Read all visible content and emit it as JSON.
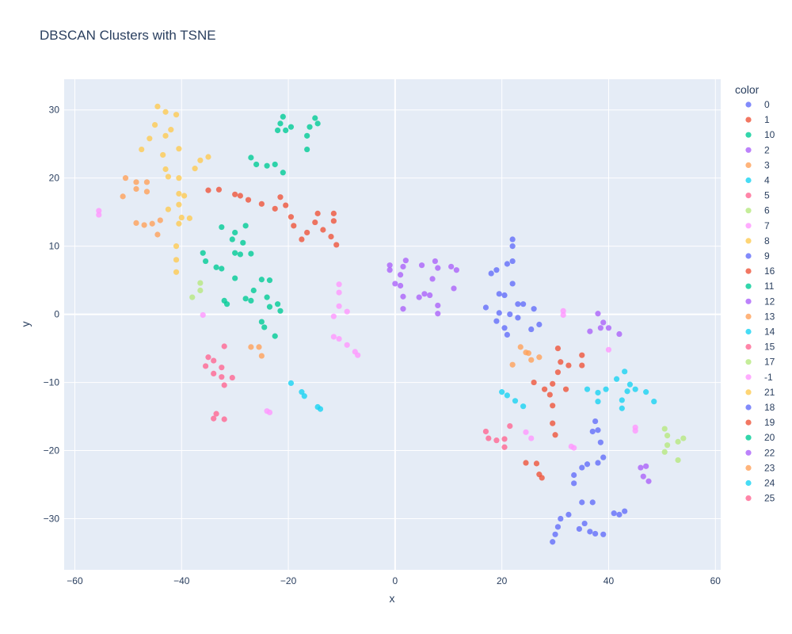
{
  "chart_data": {
    "type": "scatter",
    "title": "DBSCAN Clusters with TSNE",
    "xlabel": "x",
    "ylabel": "y",
    "xlim": [
      -62,
      61
    ],
    "ylim": [
      -37.5,
      34.5
    ],
    "xticks": [
      -60,
      -40,
      -20,
      0,
      20,
      40,
      60
    ],
    "yticks": [
      -30,
      -20,
      -10,
      0,
      10,
      20,
      30
    ],
    "grid": true,
    "legend_title": "color",
    "legend_position": "right",
    "series": [
      {
        "name": "0",
        "color": "#636efa",
        "points": [
          [
            22,
            11
          ],
          [
            22,
            10
          ],
          [
            22,
            7.8
          ],
          [
            18,
            6
          ],
          [
            19,
            6.5
          ],
          [
            19.5,
            3
          ],
          [
            21,
            7.4
          ],
          [
            20.5,
            2.8
          ],
          [
            22,
            4.5
          ],
          [
            23,
            1.5
          ],
          [
            24,
            1.5
          ],
          [
            26,
            0.8
          ],
          [
            19.5,
            0.2
          ],
          [
            21.5,
            0
          ],
          [
            23,
            -0.5
          ],
          [
            19,
            -1
          ],
          [
            20.5,
            -2
          ],
          [
            21,
            -3
          ],
          [
            25.5,
            -2.2
          ],
          [
            27,
            -1.5
          ],
          [
            17,
            1
          ]
        ]
      },
      {
        "name": "1",
        "color": "#EF553B",
        "points": [
          [
            -35,
            18.2
          ],
          [
            -33,
            18.3
          ],
          [
            -30,
            17.6
          ],
          [
            -29,
            17.4
          ],
          [
            -27.5,
            16.8
          ],
          [
            -25,
            16.2
          ],
          [
            -22.5,
            15.5
          ],
          [
            -21.5,
            17.2
          ],
          [
            -20.5,
            16
          ],
          [
            -19.5,
            14.3
          ],
          [
            -19,
            13
          ],
          [
            -17.5,
            11
          ],
          [
            -16.5,
            12
          ],
          [
            -15,
            13.5
          ],
          [
            -14.5,
            14.8
          ],
          [
            -13.5,
            12.4
          ],
          [
            -12,
            11.4
          ],
          [
            -11.5,
            13.7
          ],
          [
            -11.5,
            14.8
          ],
          [
            -11,
            10.2
          ]
        ]
      },
      {
        "name": "10",
        "color": "#00cc96",
        "points": [
          [
            -22,
            27
          ],
          [
            -21.5,
            28
          ],
          [
            -21,
            29
          ],
          [
            -20.5,
            27
          ],
          [
            -19.5,
            27.5
          ],
          [
            -16.5,
            26.2
          ],
          [
            -16.5,
            24.2
          ],
          [
            -16,
            27.5
          ],
          [
            -15,
            28.8
          ],
          [
            -14.5,
            28
          ]
        ]
      },
      {
        "name": "2",
        "color": "#ab63fa",
        "points": [
          [
            -1,
            6.5
          ],
          [
            -1,
            7.2
          ],
          [
            0,
            4.5
          ],
          [
            1,
            4.2
          ],
          [
            1.5,
            7
          ],
          [
            1,
            5.8
          ],
          [
            2,
            7.9
          ],
          [
            1.5,
            2.6
          ],
          [
            1.5,
            0.8
          ],
          [
            4.5,
            2.5
          ],
          [
            5,
            7.2
          ],
          [
            5.5,
            3
          ],
          [
            6.5,
            2.8
          ],
          [
            7,
            5.2
          ],
          [
            7.5,
            7.8
          ],
          [
            8,
            6.8
          ],
          [
            8,
            1.3
          ],
          [
            8,
            0.1
          ],
          [
            10.5,
            7
          ],
          [
            11,
            3.8
          ],
          [
            11.5,
            6.5
          ]
        ]
      },
      {
        "name": "3",
        "color": "#FFA15A",
        "points": [
          [
            -50.5,
            20
          ],
          [
            -51,
            17.3
          ],
          [
            -48.5,
            19.4
          ],
          [
            -48.5,
            18.4
          ],
          [
            -46.5,
            19.4
          ],
          [
            -46.5,
            18
          ],
          [
            -48.5,
            13.4
          ],
          [
            -47,
            13.1
          ],
          [
            -45.5,
            13.3
          ],
          [
            -44.5,
            11.7
          ],
          [
            -44,
            13.8
          ]
        ]
      },
      {
        "name": "4",
        "color": "#19d3f3",
        "points": [
          [
            41.5,
            -9.5
          ],
          [
            43,
            -8.4
          ],
          [
            44,
            -10.3
          ],
          [
            43.5,
            -11.3
          ],
          [
            45,
            -11
          ],
          [
            47,
            -11.4
          ],
          [
            48.5,
            -12.8
          ],
          [
            42.5,
            -12.6
          ],
          [
            42.5,
            -13.8
          ],
          [
            36,
            -11
          ],
          [
            38,
            -11.5
          ],
          [
            39.5,
            -11
          ],
          [
            38,
            -12.8
          ]
        ]
      },
      {
        "name": "5",
        "color": "#FF6692",
        "points": [
          [
            -35,
            -6.3
          ],
          [
            -35.5,
            -7.6
          ],
          [
            -34,
            -6.8
          ],
          [
            -34,
            -8.7
          ],
          [
            -32.5,
            -7.8
          ],
          [
            -32.5,
            -9.2
          ],
          [
            -32,
            -10.4
          ],
          [
            -30.5,
            -9.3
          ],
          [
            -32,
            -4.7
          ]
        ]
      },
      {
        "name": "6",
        "color": "#B6E880",
        "points": [
          [
            50.5,
            -16.8
          ],
          [
            51,
            -17.8
          ],
          [
            51,
            -19.2
          ],
          [
            50.5,
            -20.2
          ],
          [
            53,
            -18.7
          ],
          [
            54,
            -18.2
          ],
          [
            53,
            -21.4
          ]
        ]
      },
      {
        "name": "7",
        "color": "#FF97FF",
        "points": [
          [
            -55.5,
            14.6
          ],
          [
            -55.5,
            15.2
          ]
        ]
      },
      {
        "name": "8",
        "color": "#FECB52",
        "points": [
          [
            -44.5,
            30.5
          ],
          [
            -43,
            29.7
          ],
          [
            -41,
            29.3
          ],
          [
            -45,
            27.8
          ],
          [
            -42,
            27.1
          ],
          [
            -46,
            25.8
          ],
          [
            -43,
            26.2
          ],
          [
            -47.5,
            24.2
          ],
          [
            -40.5,
            24.3
          ],
          [
            -43.5,
            23.4
          ],
          [
            -37.5,
            21.4
          ],
          [
            -36.5,
            22.6
          ],
          [
            -35,
            23.1
          ],
          [
            -43,
            21.3
          ],
          [
            -42.5,
            20.2
          ],
          [
            -40.5,
            20
          ],
          [
            -40.5,
            17.7
          ],
          [
            -39.5,
            17.4
          ],
          [
            -40.5,
            16.1
          ],
          [
            -42.5,
            15.4
          ],
          [
            -40,
            14.2
          ],
          [
            -38.5,
            14.1
          ],
          [
            -40.5,
            13.3
          ],
          [
            -41,
            10
          ],
          [
            -41,
            8
          ],
          [
            -41,
            6.2
          ]
        ]
      },
      {
        "name": "9",
        "color": "#636efa",
        "points": [
          [
            36,
            -22
          ],
          [
            37.5,
            -15.7
          ],
          [
            38,
            -17
          ],
          [
            38.5,
            -18.8
          ],
          [
            39,
            -21
          ],
          [
            38,
            -21.8
          ],
          [
            37,
            -17.2
          ],
          [
            35,
            -22.5
          ],
          [
            33.5,
            -23.6
          ],
          [
            33.5,
            -24.8
          ],
          [
            35,
            -27.6
          ],
          [
            37,
            -27.6
          ]
        ]
      },
      {
        "name": "16",
        "color": "#EF553B",
        "points": [
          [
            30.5,
            -5
          ],
          [
            31,
            -7
          ],
          [
            32.5,
            -7.5
          ],
          [
            30.5,
            -8.5
          ],
          [
            35,
            -6
          ],
          [
            35,
            -7.5
          ],
          [
            26,
            -10
          ],
          [
            28,
            -11
          ],
          [
            29,
            -11.8
          ],
          [
            29.5,
            -10.2
          ],
          [
            32,
            -11
          ],
          [
            29.5,
            -13.4
          ]
        ]
      },
      {
        "name": "11",
        "color": "#00cc96",
        "points": [
          [
            -27,
            23
          ],
          [
            -26,
            22
          ],
          [
            -24,
            21.8
          ],
          [
            -22.5,
            22
          ],
          [
            -21,
            20.8
          ],
          [
            -32.5,
            12.8
          ],
          [
            -30,
            12
          ],
          [
            -28,
            13
          ],
          [
            -30.5,
            11
          ],
          [
            -28.5,
            10.5
          ],
          [
            -30,
            9
          ],
          [
            -29,
            8.8
          ],
          [
            -27,
            8.9
          ],
          [
            -36,
            9
          ],
          [
            -35.5,
            7.8
          ],
          [
            -33.5,
            6.9
          ],
          [
            -32.5,
            6.7
          ],
          [
            -30,
            5.3
          ],
          [
            -25,
            5.1
          ],
          [
            -23.5,
            5
          ],
          [
            -26.5,
            3.5
          ],
          [
            -28,
            2.3
          ],
          [
            -27,
            2
          ],
          [
            -24,
            2.5
          ],
          [
            -22,
            1.5
          ],
          [
            -21.5,
            0.5
          ],
          [
            -23.5,
            1.1
          ],
          [
            -32,
            2
          ],
          [
            -31.5,
            1.5
          ],
          [
            -25,
            -1.1
          ],
          [
            -24.5,
            -1.9
          ],
          [
            -22.5,
            -3.2
          ]
        ]
      },
      {
        "name": "12",
        "color": "#ab63fa",
        "points": [
          [
            38,
            0.1
          ],
          [
            39,
            -1.2
          ],
          [
            38.5,
            -2
          ],
          [
            40,
            -2
          ],
          [
            36.5,
            -2.5
          ],
          [
            42,
            -2.9
          ]
        ]
      },
      {
        "name": "13",
        "color": "#FFA15A",
        "points": [
          [
            -27,
            -4.8
          ],
          [
            -25.5,
            -4.8
          ],
          [
            -25,
            -6.1
          ],
          [
            23.5,
            -4.8
          ],
          [
            24.5,
            -5.6
          ],
          [
            25,
            -5.7
          ],
          [
            25.5,
            -6.7
          ],
          [
            27,
            -6.3
          ],
          [
            22,
            -7.4
          ]
        ]
      },
      {
        "name": "14",
        "color": "#19d3f3",
        "points": [
          [
            -19.5,
            -10.1
          ],
          [
            -17.5,
            -11.4
          ],
          [
            -17,
            -12
          ],
          [
            -14.5,
            -13.6
          ],
          [
            -14,
            -13.9
          ],
          [
            20,
            -11.4
          ],
          [
            21,
            -11.9
          ],
          [
            22.5,
            -12.7
          ],
          [
            24,
            -13.5
          ]
        ]
      },
      {
        "name": "15",
        "color": "#FF6692",
        "points": [
          [
            -33.5,
            -14.6
          ],
          [
            -34,
            -15.3
          ],
          [
            -32,
            -15.4
          ],
          [
            17,
            -17.2
          ],
          [
            17.5,
            -18.2
          ],
          [
            19,
            -18.5
          ],
          [
            20.5,
            -18.3
          ],
          [
            20.5,
            -19.5
          ],
          [
            21.5,
            -16.4
          ]
        ]
      },
      {
        "name": "17",
        "color": "#B6E880",
        "points": [
          [
            -38,
            2.5
          ],
          [
            -36.5,
            3.5
          ],
          [
            -36.5,
            4.6
          ]
        ]
      },
      {
        "name": "-1",
        "color": "#FF97FF",
        "points": [
          [
            -36,
            -0.1
          ],
          [
            -10.5,
            4.4
          ],
          [
            -10.5,
            3.2
          ],
          [
            -10.5,
            1.2
          ],
          [
            -9,
            0.4
          ],
          [
            -11.5,
            -0.3
          ],
          [
            -11.5,
            -3.3
          ],
          [
            -10.5,
            -3.6
          ],
          [
            -9,
            -4.5
          ],
          [
            -7.5,
            -5.5
          ],
          [
            -7,
            -6
          ],
          [
            -24,
            -14.2
          ],
          [
            -23.5,
            -14.4
          ],
          [
            31.5,
            0.5
          ],
          [
            31.5,
            -0.1
          ],
          [
            40,
            -5.2
          ],
          [
            24.5,
            -17.3
          ],
          [
            25.5,
            -18.2
          ],
          [
            33,
            -19.4
          ],
          [
            33.5,
            -19.6
          ],
          [
            45,
            -16.6
          ],
          [
            45,
            -17.1
          ]
        ]
      },
      {
        "name": "21",
        "color": "#FECB52",
        "points": []
      },
      {
        "name": "18",
        "color": "#636efa",
        "points": [
          [
            31,
            -30
          ],
          [
            30.5,
            -31.2
          ],
          [
            30,
            -32.3
          ],
          [
            29.5,
            -33.4
          ],
          [
            32.5,
            -29.4
          ],
          [
            34.5,
            -31.5
          ],
          [
            35.5,
            -30.7
          ],
          [
            36.5,
            -31.9
          ],
          [
            37.5,
            -32.2
          ],
          [
            39,
            -32.3
          ],
          [
            41,
            -29.2
          ],
          [
            42,
            -29.4
          ],
          [
            43,
            -28.9
          ]
        ]
      },
      {
        "name": "19",
        "color": "#EF553B",
        "points": [
          [
            30,
            -17.7
          ],
          [
            29.5,
            -16
          ],
          [
            24.5,
            -21.8
          ],
          [
            26.5,
            -21.9
          ],
          [
            27,
            -23.5
          ],
          [
            27.5,
            -24
          ]
        ]
      },
      {
        "name": "20",
        "color": "#00cc96",
        "points": []
      },
      {
        "name": "22",
        "color": "#ab63fa",
        "points": [
          [
            46,
            -22.5
          ],
          [
            47,
            -22.3
          ],
          [
            46.5,
            -23.8
          ],
          [
            47.5,
            -24.5
          ]
        ]
      },
      {
        "name": "23",
        "color": "#FFA15A",
        "points": []
      },
      {
        "name": "24",
        "color": "#19d3f3",
        "points": []
      },
      {
        "name": "25",
        "color": "#FF6692",
        "points": []
      }
    ]
  }
}
